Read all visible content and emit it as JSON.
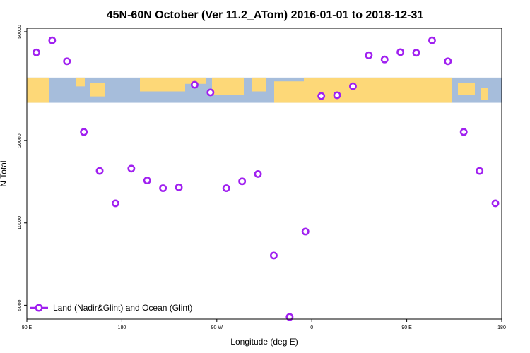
{
  "chart_data": {
    "type": "scatter",
    "title": "45N-60N October (Ver 11.2_ATom)   2016-01-01 to 2018-12-31",
    "xlabel": "Longitude (deg E)",
    "ylabel": "N Total",
    "x_ticks": [
      {
        "value": 90,
        "label": "90 E"
      },
      {
        "value": 180,
        "label": "180"
      },
      {
        "value": 270,
        "label": "90 W"
      },
      {
        "value": 360,
        "label": "0"
      },
      {
        "value": 450,
        "label": "90 E"
      },
      {
        "value": 540,
        "label": "180"
      }
    ],
    "y_ticks": [
      {
        "value": 5000,
        "label": "5000"
      },
      {
        "value": 10000,
        "label": "10000"
      },
      {
        "value": 20000,
        "label": "20000"
      },
      {
        "value": 50000,
        "label": "50000"
      }
    ],
    "xlim": [
      90,
      540
    ],
    "ylim": [
      4450,
      51500
    ],
    "y_scale": "log",
    "legend": {
      "placement": "bottom-left",
      "label": "Land (Nadir&Glint) and Ocean (Glint)"
    },
    "map_band": {
      "ocean_color": "#a6bddb",
      "land_color": "#fdd878",
      "y_top": 34000,
      "y_bottom": 27500
    },
    "series": [
      {
        "name": "Land (Nadir&Glint) and Ocean (Glint)",
        "color": "#a020f0",
        "points": [
          [
            99,
            42000
          ],
          [
            114,
            46500
          ],
          [
            128,
            39000
          ],
          [
            144,
            21500
          ],
          [
            159,
            15500
          ],
          [
            174,
            11800
          ],
          [
            189,
            15800
          ],
          [
            204,
            14300
          ],
          [
            219,
            13400
          ],
          [
            234,
            13500
          ],
          [
            249,
            32000
          ],
          [
            264,
            30000
          ],
          [
            279,
            13400
          ],
          [
            294,
            14200
          ],
          [
            309,
            15100
          ],
          [
            324,
            7600
          ],
          [
            339,
            4530
          ],
          [
            354,
            9300
          ],
          [
            369,
            29100
          ],
          [
            384,
            29300
          ],
          [
            399,
            31600
          ],
          [
            414,
            41000
          ],
          [
            429,
            39600
          ],
          [
            444,
            42100
          ],
          [
            459,
            41900
          ],
          [
            474,
            46500
          ],
          [
            489,
            39000
          ],
          [
            504,
            21500
          ],
          [
            519,
            15500
          ],
          [
            534,
            11800
          ]
        ]
      }
    ]
  }
}
